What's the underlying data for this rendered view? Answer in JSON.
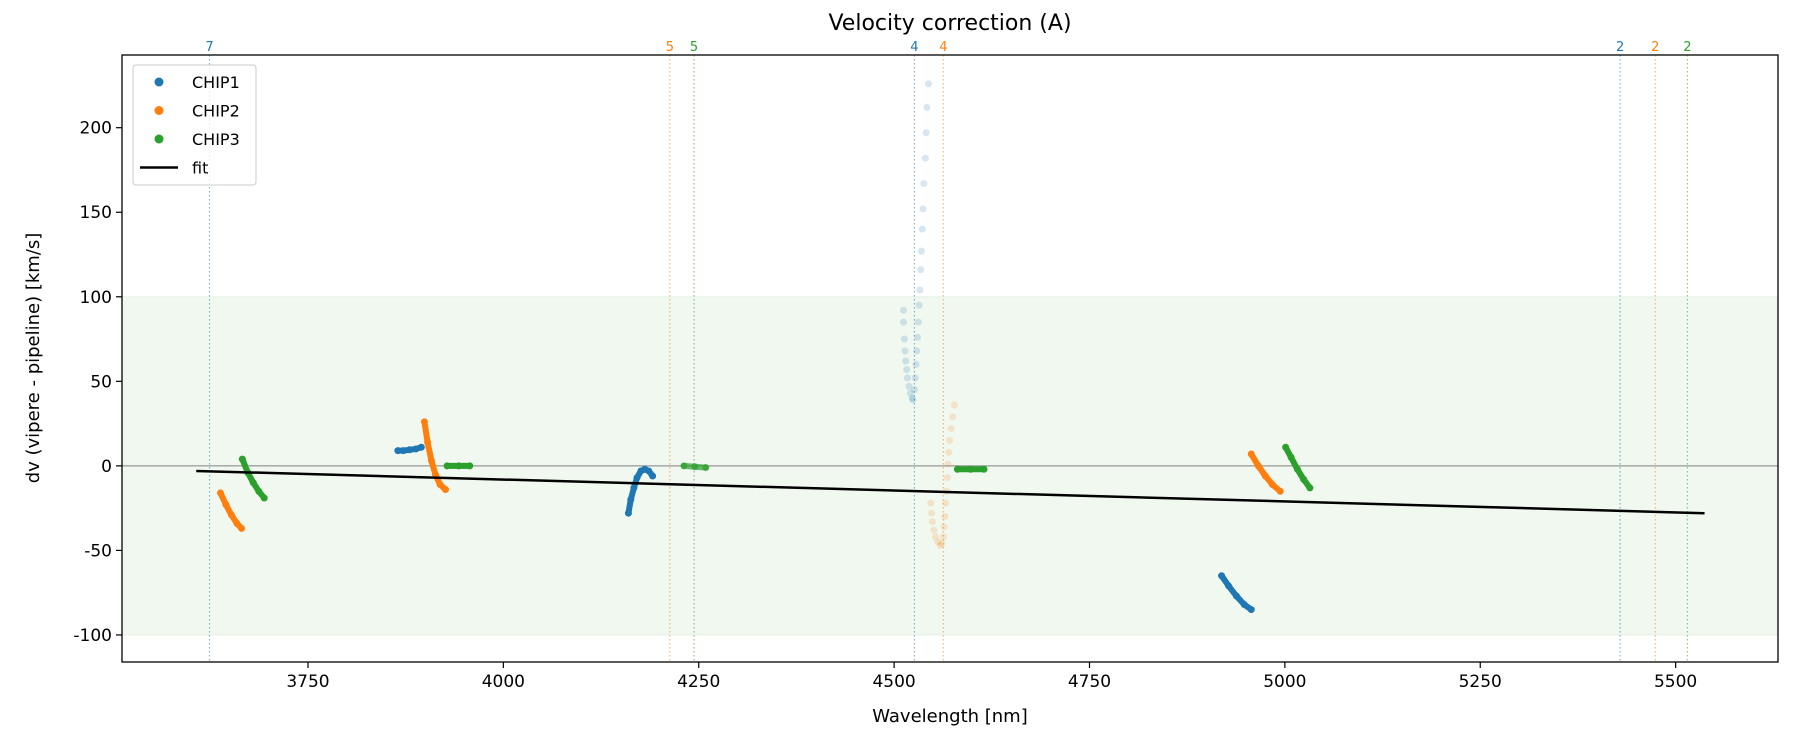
{
  "chart_data": {
    "type": "scatter",
    "title": "Velocity correction (A)",
    "xlabel": "Wavelength [nm]",
    "ylabel": "dv (vipere - pipeline) [km/s]",
    "xlim": [
      3512,
      5631
    ],
    "ylim": [
      -116,
      243
    ],
    "xticks": [
      3750,
      4000,
      4250,
      4500,
      4750,
      5000,
      5250,
      5500
    ],
    "yticks": [
      -100,
      -50,
      0,
      50,
      100,
      150,
      200
    ],
    "grid": false,
    "legend_position": "top-left",
    "legend": [
      {
        "label": "CHIP1",
        "kind": "marker",
        "color": "#1f77b4"
      },
      {
        "label": "CHIP2",
        "kind": "marker",
        "color": "#ff7f0e"
      },
      {
        "label": "CHIP3",
        "kind": "marker",
        "color": "#2ca02c"
      },
      {
        "label": "fit",
        "kind": "line",
        "color": "#000000"
      }
    ],
    "band": {
      "y0": -100,
      "y1": 100,
      "color": "#2ca02c"
    },
    "zero_line": {
      "y": 0,
      "color": "#808080"
    },
    "fit": {
      "x": [
        3607,
        5537
      ],
      "y": [
        -3,
        -28
      ],
      "color": "#000000"
    },
    "order_lines": [
      {
        "x": 3624,
        "label": "7",
        "color": "#1f77b4"
      },
      {
        "x": 4213,
        "label": "5",
        "color": "#ff7f0e"
      },
      {
        "x": 4244,
        "label": "5",
        "color": "#2ca02c"
      },
      {
        "x": 4526,
        "label": "4",
        "color": "#1f77b4"
      },
      {
        "x": 4563,
        "label": "4",
        "color": "#ff7f0e"
      },
      {
        "x": 5429,
        "label": "2",
        "color": "#1f77b4"
      },
      {
        "x": 5474,
        "label": "2",
        "color": "#ff7f0e"
      },
      {
        "x": 5515,
        "label": "2",
        "color": "#2ca02c"
      }
    ],
    "series": [
      {
        "name": "CHIP1",
        "color": "#1f77b4",
        "segments": [
          {
            "alpha": 1,
            "points": [
              [
                3865,
                9
              ],
              [
                3872,
                9
              ],
              [
                3880,
                9.5
              ],
              [
                3888,
                10
              ],
              [
                3895,
                11
              ]
            ]
          },
          {
            "alpha": 1,
            "points": [
              [
                4160,
                -28
              ],
              [
                4163,
                -20
              ],
              [
                4167,
                -13
              ],
              [
                4171,
                -7
              ],
              [
                4176,
                -3
              ],
              [
                4181,
                -2
              ],
              [
                4186,
                -3
              ],
              [
                4191,
                -6
              ]
            ]
          },
          {
            "alpha": 0.18,
            "points": [
              [
                4512,
                92
              ],
              [
                4512,
                85
              ],
              [
                4513,
                75
              ],
              [
                4514,
                68
              ],
              [
                4515,
                62
              ],
              [
                4516,
                57
              ],
              [
                4517,
                52
              ],
              [
                4519,
                47
              ],
              [
                4521,
                43
              ],
              [
                4523,
                40
              ],
              [
                4524,
                39
              ],
              [
                4526,
                45
              ],
              [
                4527,
                52
              ],
              [
                4528,
                60
              ],
              [
                4529,
                68
              ],
              [
                4530,
                76
              ],
              [
                4531,
                85
              ],
              [
                4532,
                95
              ],
              [
                4533,
                104
              ],
              [
                4534,
                116
              ],
              [
                4535,
                127
              ],
              [
                4536,
                140
              ],
              [
                4537,
                152
              ],
              [
                4538,
                167
              ],
              [
                4540,
                182
              ],
              [
                4541,
                197
              ],
              [
                4542,
                212
              ],
              [
                4544,
                226
              ]
            ]
          },
          {
            "alpha": 1,
            "points": [
              [
                4919,
                -65
              ],
              [
                4928,
                -71
              ],
              [
                4938,
                -77
              ],
              [
                4948,
                -82
              ],
              [
                4957,
                -85
              ]
            ]
          }
        ]
      },
      {
        "name": "CHIP2",
        "color": "#ff7f0e",
        "segments": [
          {
            "alpha": 1,
            "points": [
              [
                3638,
                -16
              ],
              [
                3645,
                -23
              ],
              [
                3652,
                -29
              ],
              [
                3659,
                -34
              ],
              [
                3665,
                -37
              ]
            ]
          },
          {
            "alpha": 1,
            "points": [
              [
                3899,
                26
              ],
              [
                3903,
                14
              ],
              [
                3908,
                3
              ],
              [
                3913,
                -5
              ],
              [
                3919,
                -11
              ],
              [
                3926,
                -14
              ]
            ]
          },
          {
            "alpha": 0.18,
            "points": [
              [
                4547,
                -22
              ],
              [
                4548,
                -28
              ],
              [
                4549,
                -33
              ],
              [
                4551,
                -38
              ],
              [
                4553,
                -42
              ],
              [
                4556,
                -45
              ],
              [
                4559,
                -47
              ],
              [
                4561,
                -46
              ],
              [
                4563,
                -42
              ],
              [
                4564,
                -36
              ],
              [
                4565,
                -30
              ],
              [
                4566,
                -22
              ],
              [
                4567,
                -15
              ],
              [
                4568,
                -7
              ],
              [
                4569,
                1
              ],
              [
                4570,
                8
              ],
              [
                4571,
                15
              ],
              [
                4573,
                22
              ],
              [
                4575,
                29
              ],
              [
                4577,
                36
              ]
            ]
          },
          {
            "alpha": 1,
            "points": [
              [
                4957,
                7
              ],
              [
                4966,
                0
              ],
              [
                4975,
                -6
              ],
              [
                4984,
                -11
              ],
              [
                4994,
                -15
              ]
            ]
          }
        ]
      },
      {
        "name": "CHIP3",
        "color": "#2ca02c",
        "segments": [
          {
            "alpha": 1,
            "points": [
              [
                3666,
                4
              ],
              [
                3673,
                -4
              ],
              [
                3680,
                -10
              ],
              [
                3687,
                -15
              ],
              [
                3694,
                -19
              ]
            ]
          },
          {
            "alpha": 1,
            "points": [
              [
                3928,
                0
              ],
              [
                3943,
                0
              ],
              [
                3957,
                0
              ]
            ]
          },
          {
            "alpha": 0.7,
            "points": [
              [
                4231,
                0
              ],
              [
                4245,
                -0.5
              ],
              [
                4259,
                -1
              ]
            ]
          },
          {
            "alpha": 1,
            "points": [
              [
                4581,
                -2
              ],
              [
                4598,
                -2
              ],
              [
                4615,
                -2
              ]
            ]
          },
          {
            "alpha": 1,
            "points": [
              [
                5001,
                11
              ],
              [
                5008,
                5
              ],
              [
                5016,
                -2
              ],
              [
                5024,
                -8
              ],
              [
                5032,
                -13
              ]
            ]
          }
        ]
      }
    ]
  }
}
